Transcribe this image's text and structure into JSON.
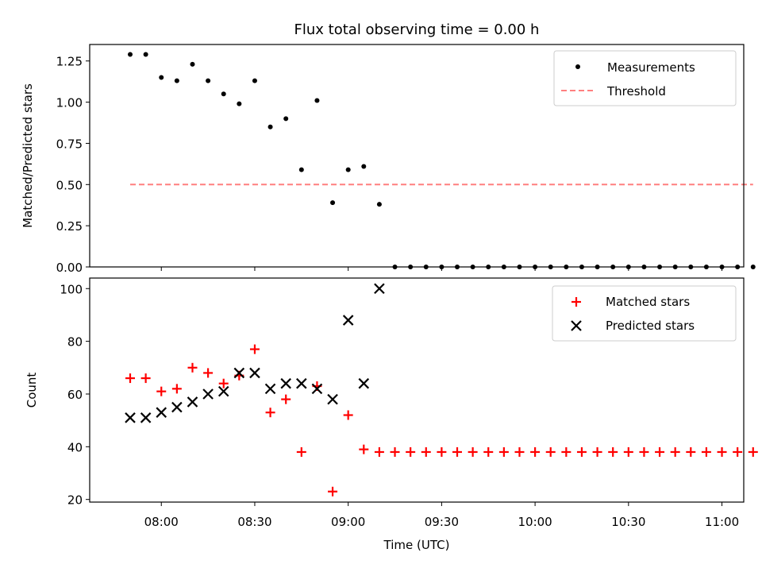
{
  "title": "Flux total observing time = 0.00 h",
  "chart_data": [
    {
      "type": "scatter",
      "ylabel": "Matched/Predicted stars",
      "ylim": [
        0,
        1.35
      ],
      "yticks": [
        "0.00",
        "0.25",
        "0.50",
        "0.75",
        "1.00",
        "1.25"
      ],
      "xlim": [
        "07:37",
        "11:07"
      ],
      "legend_position": "top-right",
      "series": [
        {
          "name": "Measurements",
          "marker": "dot",
          "color": "#000000",
          "points": [
            [
              "07:50",
              1.29
            ],
            [
              "07:55",
              1.29
            ],
            [
              "08:00",
              1.15
            ],
            [
              "08:05",
              1.13
            ],
            [
              "08:10",
              1.23
            ],
            [
              "08:15",
              1.13
            ],
            [
              "08:20",
              1.05
            ],
            [
              "08:25",
              0.99
            ],
            [
              "08:30",
              1.13
            ],
            [
              "08:35",
              0.85
            ],
            [
              "08:40",
              0.9
            ],
            [
              "08:45",
              0.59
            ],
            [
              "08:50",
              1.01
            ],
            [
              "08:55",
              0.39
            ],
            [
              "09:00",
              0.59
            ],
            [
              "09:05",
              0.61
            ],
            [
              "09:10",
              0.38
            ],
            [
              "09:15",
              0.0
            ],
            [
              "09:20",
              0.0
            ],
            [
              "09:25",
              0.0
            ],
            [
              "09:30",
              0.0
            ],
            [
              "09:35",
              0.0
            ],
            [
              "09:40",
              0.0
            ],
            [
              "09:45",
              0.0
            ],
            [
              "09:50",
              0.0
            ],
            [
              "09:55",
              0.0
            ],
            [
              "10:00",
              0.0
            ],
            [
              "10:05",
              0.0
            ],
            [
              "10:10",
              0.0
            ],
            [
              "10:15",
              0.0
            ],
            [
              "10:20",
              0.0
            ],
            [
              "10:25",
              0.0
            ],
            [
              "10:30",
              0.0
            ],
            [
              "10:35",
              0.0
            ],
            [
              "10:40",
              0.0
            ],
            [
              "10:45",
              0.0
            ],
            [
              "10:50",
              0.0
            ],
            [
              "10:55",
              0.0
            ],
            [
              "11:00",
              0.0
            ],
            [
              "11:05",
              0.0
            ],
            [
              "11:10",
              0.0
            ]
          ]
        },
        {
          "name": "Threshold",
          "type": "line",
          "style": "dashed",
          "color": "#ff7f7f",
          "points": [
            [
              "07:50",
              0.5
            ],
            [
              "11:10",
              0.5
            ]
          ]
        }
      ]
    },
    {
      "type": "scatter",
      "xlabel": "Time (UTC)",
      "ylabel": "Count",
      "ylim": [
        19,
        104
      ],
      "yticks": [
        "20",
        "40",
        "60",
        "80",
        "100"
      ],
      "xticks": [
        "08:00",
        "08:30",
        "09:00",
        "09:30",
        "10:00",
        "10:30",
        "11:00"
      ],
      "xlim": [
        "07:37",
        "11:07"
      ],
      "legend_position": "top-right",
      "series": [
        {
          "name": "Matched stars",
          "marker": "plus",
          "color": "#ff0000",
          "points": [
            [
              "07:50",
              66
            ],
            [
              "07:55",
              66
            ],
            [
              "08:00",
              61
            ],
            [
              "08:05",
              62
            ],
            [
              "08:10",
              70
            ],
            [
              "08:15",
              68
            ],
            [
              "08:20",
              64
            ],
            [
              "08:25",
              67
            ],
            [
              "08:30",
              77
            ],
            [
              "08:35",
              53
            ],
            [
              "08:40",
              58
            ],
            [
              "08:45",
              38
            ],
            [
              "08:50",
              63
            ],
            [
              "08:55",
              23
            ],
            [
              "09:00",
              52
            ],
            [
              "09:05",
              39
            ],
            [
              "09:10",
              38
            ],
            [
              "09:15",
              38
            ],
            [
              "09:20",
              38
            ],
            [
              "09:25",
              38
            ],
            [
              "09:30",
              38
            ],
            [
              "09:35",
              38
            ],
            [
              "09:40",
              38
            ],
            [
              "09:45",
              38
            ],
            [
              "09:50",
              38
            ],
            [
              "09:55",
              38
            ],
            [
              "10:00",
              38
            ],
            [
              "10:05",
              38
            ],
            [
              "10:10",
              38
            ],
            [
              "10:15",
              38
            ],
            [
              "10:20",
              38
            ],
            [
              "10:25",
              38
            ],
            [
              "10:30",
              38
            ],
            [
              "10:35",
              38
            ],
            [
              "10:40",
              38
            ],
            [
              "10:45",
              38
            ],
            [
              "10:50",
              38
            ],
            [
              "10:55",
              38
            ],
            [
              "11:00",
              38
            ],
            [
              "11:05",
              38
            ],
            [
              "11:10",
              38
            ]
          ]
        },
        {
          "name": "Predicted stars",
          "marker": "x",
          "color": "#000000",
          "points": [
            [
              "07:50",
              51
            ],
            [
              "07:55",
              51
            ],
            [
              "08:00",
              53
            ],
            [
              "08:05",
              55
            ],
            [
              "08:10",
              57
            ],
            [
              "08:15",
              60
            ],
            [
              "08:20",
              61
            ],
            [
              "08:25",
              68
            ],
            [
              "08:30",
              68
            ],
            [
              "08:35",
              62
            ],
            [
              "08:40",
              64
            ],
            [
              "08:45",
              64
            ],
            [
              "08:50",
              62
            ],
            [
              "08:55",
              58
            ],
            [
              "09:00",
              88
            ],
            [
              "09:05",
              64
            ],
            [
              "09:10",
              100
            ]
          ]
        }
      ]
    }
  ]
}
